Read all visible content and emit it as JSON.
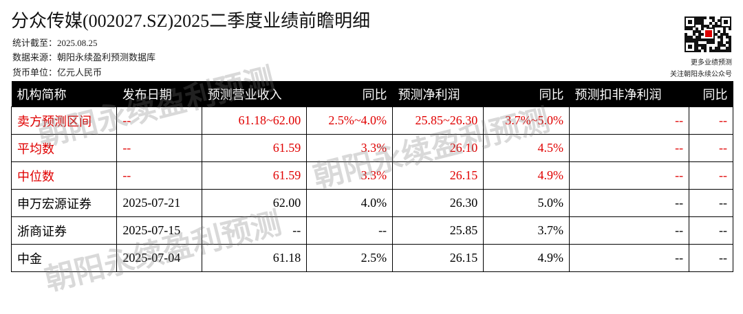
{
  "header": {
    "title": "分众传媒(002027.SZ)2025二季度业绩前瞻明细",
    "meta": [
      "统计截至：2025.08.25",
      "数据来源：朝阳永续盈利预测数据库",
      "货币单位：亿元人民币"
    ]
  },
  "qr": {
    "captions": [
      "更多业绩预测",
      "关注朝阳永续公众号"
    ]
  },
  "table": {
    "headers": [
      "机构简称",
      "发布日期",
      "预测营业收入",
      "同比",
      "预测净利润",
      "同比",
      "预测扣非净利润",
      "同比"
    ],
    "rows": [
      [
        "卖方预测区间",
        "--",
        "61.18~62.00",
        "2.5%~4.0%",
        "25.85~26.30",
        "3.7%~5.0%",
        "--",
        "--"
      ],
      [
        "平均数",
        "--",
        "61.59",
        "3.3%",
        "26.10",
        "4.5%",
        "--",
        "--"
      ],
      [
        "中位数",
        "--",
        "61.59",
        "3.3%",
        "26.15",
        "4.9%",
        "--",
        "--"
      ],
      [
        "申万宏源证券",
        "2025-07-21",
        "62.00",
        "4.0%",
        "26.30",
        "5.0%",
        "--",
        "--"
      ],
      [
        "浙商证券",
        "2025-07-15",
        "--",
        "--",
        "25.85",
        "3.7%",
        "--",
        "--"
      ],
      [
        "中金",
        "2025-07-04",
        "61.18",
        "2.5%",
        "26.15",
        "4.9%",
        "--",
        "--"
      ]
    ]
  },
  "watermarks": [
    "朝阳永续盈利预测",
    "朝阳永续盈利预测",
    "朝阳永续盈利预测"
  ]
}
